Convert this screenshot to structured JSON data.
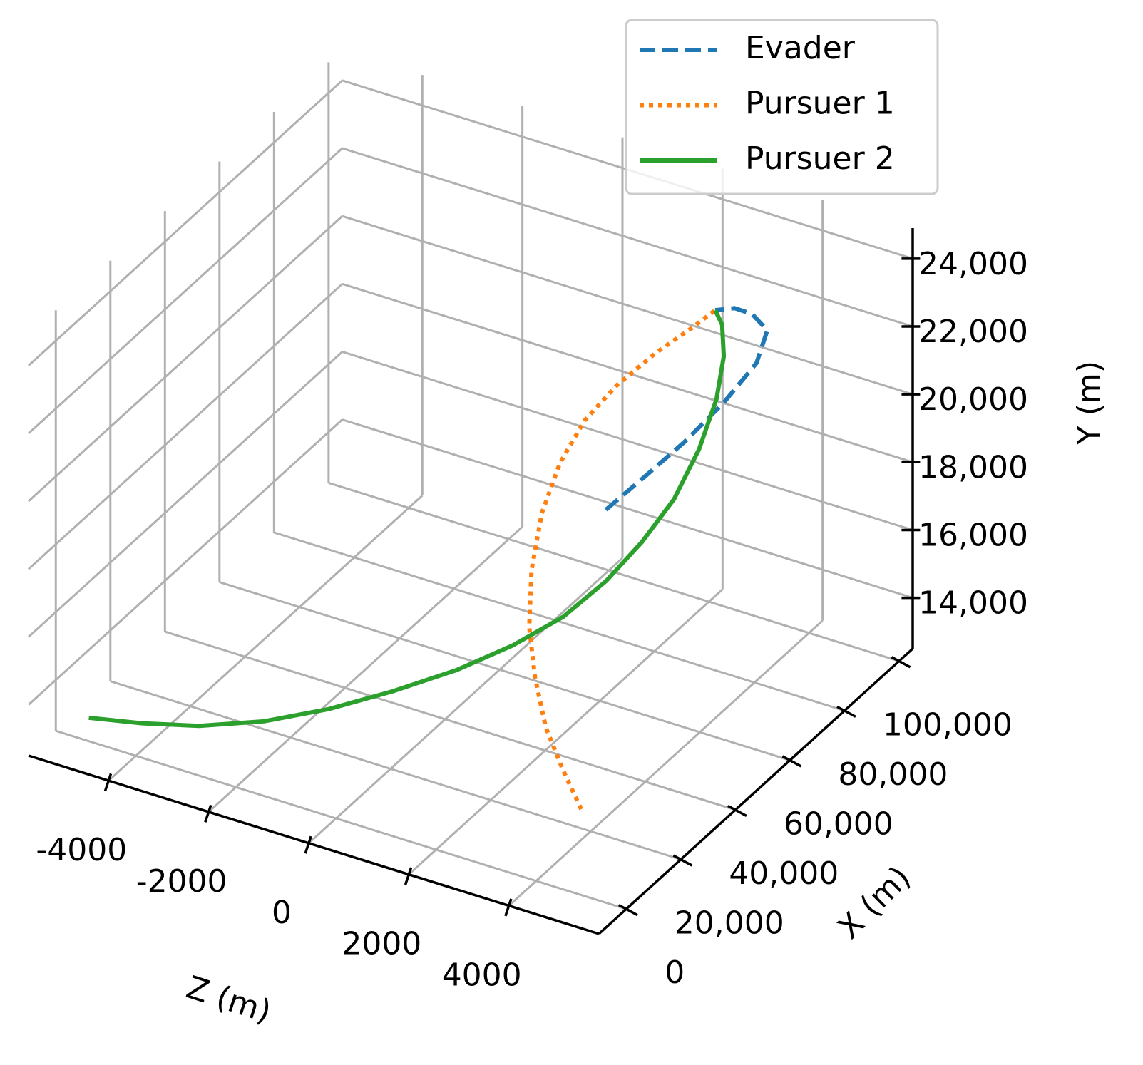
{
  "chart_data": {
    "type": "line3d",
    "xlabel": "X (m)",
    "ylabel": "Y (m)",
    "zlabel": "Z (m)",
    "xlim": [
      -10000,
      105000
    ],
    "ylim": [
      12500,
      24900
    ],
    "zlim": [
      -5600,
      5800
    ],
    "xticks": [
      {
        "value": 0,
        "label": "0"
      },
      {
        "value": 20000,
        "label": "20,000"
      },
      {
        "value": 40000,
        "label": "40,000"
      },
      {
        "value": 60000,
        "label": "60,000"
      },
      {
        "value": 80000,
        "label": "80,000"
      },
      {
        "value": 100000,
        "label": "100,000"
      }
    ],
    "yticks": [
      {
        "value": 14000,
        "label": "14,000"
      },
      {
        "value": 16000,
        "label": "16,000"
      },
      {
        "value": 18000,
        "label": "18,000"
      },
      {
        "value": 20000,
        "label": "20,000"
      },
      {
        "value": 22000,
        "label": "22,000"
      },
      {
        "value": 24000,
        "label": "24,000"
      }
    ],
    "zticks": [
      -4000,
      -2000,
      0,
      2000,
      4000
    ],
    "grid": true,
    "legend_loc": "upper right",
    "series": [
      {
        "name": "Evader",
        "color": "#1f77b4",
        "linestyle": "dashed",
        "x": [
          100000,
          99000,
          98000,
          97000,
          96000,
          95000,
          94000,
          93500,
          93500
        ],
        "y": [
          14260,
          15690,
          17180,
          18800,
          20370,
          21530,
          21970,
          22030,
          21790
        ],
        "z": [
          -60,
          770,
          1620,
          2460,
          3170,
          3440,
          3190,
          2870,
          2480
        ]
      },
      {
        "name": "Pursuer 1",
        "color": "#ff7f0e",
        "linestyle": "dotted",
        "x": [
          0,
          7800,
          15600,
          23400,
          31200,
          39000,
          46800,
          54500,
          62300,
          70200,
          78000,
          85700,
          93500
        ],
        "y": [
          15030,
          15250,
          15590,
          16200,
          16850,
          17780,
          18790,
          19670,
          20400,
          20970,
          21510,
          21820,
          21790
        ],
        "z": [
          4900,
          4110,
          3340,
          2700,
          2160,
          1780,
          1560,
          1500,
          1570,
          1790,
          2140,
          2440,
          2480
        ]
      },
      {
        "name": "Pursuer 2",
        "color": "#2ca02c",
        "linestyle": "solid",
        "x": [
          0,
          5900,
          11700,
          17600,
          23400,
          29200,
          35100,
          40900,
          46800,
          52600,
          58400,
          64300,
          70200,
          76000,
          81800,
          87600,
          93500
        ],
        "y": [
          13190,
          12940,
          12820,
          12970,
          13350,
          13890,
          14530,
          15220,
          15940,
          16820,
          17730,
          18710,
          19840,
          20900,
          21660,
          22010,
          21790
        ],
        "z": [
          -4940,
          -4190,
          -3370,
          -2400,
          -1430,
          -470,
          490,
          1310,
          1990,
          2530,
          2930,
          3250,
          3430,
          3460,
          3290,
          2940,
          2480
        ]
      }
    ]
  }
}
